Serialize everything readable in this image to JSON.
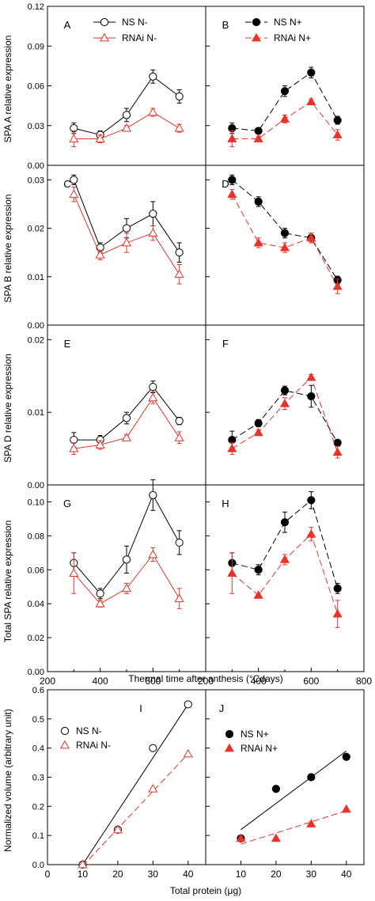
{
  "colors": {
    "ns": "#000000",
    "rnai": "#e8332a",
    "frame": "#000000"
  },
  "xaxis_label": "Thermal time after anthesis (°Cdays)",
  "xaxis_ticks": [
    "200",
    "400",
    "600",
    "800"
  ],
  "x_tick_values": [
    200,
    400,
    600,
    800
  ],
  "x_left_ticks": [
    "200",
    "400",
    "600",
    "800"
  ],
  "x_right_ticks": [
    "200",
    "400",
    "600",
    "800"
  ],
  "chart_data": [
    {
      "type": "line",
      "panel": "A",
      "column": "N-",
      "ylabel": "SPA A relative expression",
      "ylim": [
        0,
        0.12
      ],
      "yticks": [
        "0.00",
        "0.03",
        "0.06",
        "0.09",
        "0.12"
      ],
      "ytick_values": [
        0,
        0.03,
        0.06,
        0.09,
        0.12
      ],
      "x": [
        300,
        400,
        500,
        600,
        700
      ],
      "series": [
        {
          "name": "NS N-",
          "values": [
            0.028,
            0.023,
            0.038,
            0.067,
            0.052
          ],
          "err": [
            0.004,
            0.003,
            0.005,
            0.005,
            0.005
          ],
          "marker": "circle-open",
          "dashed": false,
          "color": "#000000"
        },
        {
          "name": "RNAi N-",
          "values": [
            0.02,
            0.02,
            0.028,
            0.04,
            0.028
          ],
          "err": [
            0.006,
            0.003,
            0.002,
            0.003,
            0.003
          ],
          "marker": "triangle-open",
          "dashed": false,
          "color": "#e8332a"
        }
      ],
      "legend": true
    },
    {
      "type": "line",
      "panel": "B",
      "column": "N+",
      "ylim": [
        0,
        0.12
      ],
      "x": [
        300,
        400,
        500,
        600,
        700
      ],
      "series": [
        {
          "name": "NS N+",
          "values": [
            0.028,
            0.026,
            0.056,
            0.07,
            0.034
          ],
          "err": [
            0.004,
            0.002,
            0.004,
            0.004,
            0.003
          ],
          "marker": "circle-filled",
          "dashed": true,
          "color": "#000000"
        },
        {
          "name": "RNAi N+",
          "values": [
            0.02,
            0.02,
            0.035,
            0.048,
            0.023
          ],
          "err": [
            0.006,
            0.002,
            0.003,
            0.002,
            0.004
          ],
          "marker": "triangle-filled",
          "dashed": true,
          "color": "#e8332a"
        }
      ],
      "legend": true
    },
    {
      "type": "line",
      "panel": "C",
      "column": "N-",
      "ylabel": "SPA B relative expression",
      "ylim": [
        0,
        0.033
      ],
      "yticks": [
        "0.00",
        "0.01",
        "0.02",
        "0.03"
      ],
      "ytick_values": [
        0,
        0.01,
        0.02,
        0.03
      ],
      "x": [
        300,
        400,
        500,
        600,
        700
      ],
      "series": [
        {
          "name": "NS N-",
          "values": [
            0.03,
            0.016,
            0.02,
            0.023,
            0.015
          ],
          "err": [
            0.001,
            0.001,
            0.002,
            0.0025,
            0.002
          ],
          "marker": "circle-open",
          "dashed": false,
          "color": "#000000"
        },
        {
          "name": "RNAi N-",
          "values": [
            0.027,
            0.0145,
            0.017,
            0.019,
            0.0105
          ],
          "err": [
            0.0015,
            0.001,
            0.002,
            0.0015,
            0.002
          ],
          "marker": "triangle-open",
          "dashed": false,
          "color": "#e8332a"
        }
      ]
    },
    {
      "type": "line",
      "panel": "D",
      "column": "N+",
      "ylim": [
        0,
        0.033
      ],
      "x": [
        300,
        400,
        500,
        600,
        700
      ],
      "series": [
        {
          "name": "NS N+",
          "values": [
            0.03,
            0.0255,
            0.019,
            0.018,
            0.0093
          ],
          "err": [
            0.001,
            0.001,
            0.001,
            0.001,
            0.0008
          ],
          "marker": "circle-filled",
          "dashed": true,
          "color": "#000000"
        },
        {
          "name": "RNAi N+",
          "values": [
            0.027,
            0.017,
            0.016,
            0.018,
            0.008
          ],
          "err": [
            0.001,
            0.001,
            0.001,
            0.001,
            0.0015
          ],
          "marker": "triangle-filled",
          "dashed": true,
          "color": "#e8332a"
        }
      ]
    },
    {
      "type": "line",
      "panel": "E",
      "column": "N-",
      "ylabel": "SPA D relative expression",
      "ylim": [
        0,
        0.022
      ],
      "yticks": [
        "0.00",
        "0.01",
        "0.02"
      ],
      "ytick_values": [
        0,
        0.01,
        0.02
      ],
      "x": [
        300,
        400,
        500,
        600,
        700
      ],
      "series": [
        {
          "name": "NS N-",
          "values": [
            0.0062,
            0.0062,
            0.0092,
            0.0135,
            0.0088
          ],
          "err": [
            0.001,
            0.0006,
            0.0008,
            0.0008,
            0.0005
          ],
          "marker": "circle-open",
          "dashed": false,
          "color": "#000000"
        },
        {
          "name": "RNAi N-",
          "values": [
            0.005,
            0.0055,
            0.0065,
            0.012,
            0.0065
          ],
          "err": [
            0.0008,
            0.0006,
            0.0004,
            0.0008,
            0.0008
          ],
          "marker": "triangle-open",
          "dashed": false,
          "color": "#e8332a"
        }
      ]
    },
    {
      "type": "line",
      "panel": "F",
      "column": "N+",
      "ylim": [
        0,
        0.022
      ],
      "x": [
        300,
        400,
        500,
        600,
        700
      ],
      "series": [
        {
          "name": "NS N+",
          "values": [
            0.0062,
            0.0085,
            0.013,
            0.0122,
            0.0058
          ],
          "err": [
            0.0012,
            0.0005,
            0.0006,
            0.0015,
            0.0004
          ],
          "marker": "circle-filled",
          "dashed": true,
          "color": "#000000"
        },
        {
          "name": "RNAi N+",
          "values": [
            0.005,
            0.0072,
            0.0112,
            0.0148,
            0.0045
          ],
          "err": [
            0.0008,
            0.0004,
            0.0008,
            0.0004,
            0.0008
          ],
          "marker": "triangle-filled",
          "dashed": true,
          "color": "#e8332a"
        }
      ]
    },
    {
      "type": "line",
      "panel": "G",
      "column": "N-",
      "ylabel": "Total SPA relative expression",
      "ylim": [
        0,
        0.11
      ],
      "yticks": [
        "0.00",
        "0.02",
        "0.04",
        "0.06",
        "0.08",
        "0.10"
      ],
      "ytick_values": [
        0,
        0.02,
        0.04,
        0.06,
        0.08,
        0.1
      ],
      "x": [
        300,
        400,
        500,
        600,
        700
      ],
      "series": [
        {
          "name": "NS N-",
          "values": [
            0.064,
            0.046,
            0.066,
            0.104,
            0.076
          ],
          "err": [
            0.006,
            0.003,
            0.008,
            0.009,
            0.007
          ],
          "marker": "circle-open",
          "dashed": false,
          "color": "#000000"
        },
        {
          "name": "RNAi N-",
          "values": [
            0.058,
            0.04,
            0.049,
            0.069,
            0.043
          ],
          "err": [
            0.012,
            0.002,
            0.003,
            0.004,
            0.006
          ],
          "marker": "triangle-open",
          "dashed": false,
          "color": "#e8332a"
        }
      ]
    },
    {
      "type": "line",
      "panel": "H",
      "column": "N+",
      "ylim": [
        0,
        0.11
      ],
      "x": [
        300,
        400,
        500,
        600,
        700
      ],
      "series": [
        {
          "name": "NS N+",
          "values": [
            0.064,
            0.06,
            0.088,
            0.101,
            0.049
          ],
          "err": [
            0.006,
            0.003,
            0.006,
            0.005,
            0.003
          ],
          "marker": "circle-filled",
          "dashed": true,
          "color": "#000000"
        },
        {
          "name": "RNAi N+",
          "values": [
            0.058,
            0.045,
            0.066,
            0.081,
            0.034
          ],
          "err": [
            0.012,
            0.001,
            0.003,
            0.004,
            0.008
          ],
          "marker": "triangle-filled",
          "dashed": true,
          "color": "#e8332a"
        }
      ]
    },
    {
      "type": "scatter",
      "panel": "I",
      "column": "N-",
      "ylabel": "Normalized volume (arbitrary unit)",
      "xlabel": "Total protein (μg)",
      "ylim": [
        0,
        0.6
      ],
      "yticks": [
        "0.0",
        "0.1",
        "0.2",
        "0.3",
        "0.4",
        "0.5",
        "0.6"
      ],
      "ytick_values": [
        0,
        0.1,
        0.2,
        0.3,
        0.4,
        0.5,
        0.6
      ],
      "xlim": [
        0,
        45
      ],
      "xticks": [
        "0",
        "10",
        "20",
        "30",
        "40"
      ],
      "xtick_values": [
        0,
        10,
        20,
        30,
        40
      ],
      "x": [
        10,
        20,
        30,
        40
      ],
      "series": [
        {
          "name": "NS N-",
          "values": [
            0.0,
            0.12,
            0.4,
            0.55
          ],
          "marker": "circle-open",
          "dashed": false,
          "color": "#000000",
          "fit": [
            10,
            0.0,
            40,
            0.55
          ]
        },
        {
          "name": "RNAi N-",
          "values": [
            0.0,
            0.12,
            0.26,
            0.38
          ],
          "marker": "triangle-open",
          "dashed": true,
          "color": "#e8332a",
          "fit": [
            10,
            -0.005,
            40,
            0.38
          ]
        }
      ],
      "legend": true
    },
    {
      "type": "scatter",
      "panel": "J",
      "column": "N+",
      "ylim": [
        0,
        0.6
      ],
      "xlim": [
        0,
        45
      ],
      "xticks": [
        "0",
        "10",
        "20",
        "30",
        "40"
      ],
      "xtick_values": [
        0,
        10,
        20,
        30,
        40
      ],
      "x": [
        10,
        20,
        30,
        40
      ],
      "series": [
        {
          "name": "NS N+",
          "values": [
            0.09,
            0.26,
            0.3,
            0.37
          ],
          "marker": "circle-filled",
          "dashed": false,
          "color": "#000000",
          "fit": [
            10,
            0.12,
            40,
            0.39
          ]
        },
        {
          "name": "RNAi N+",
          "values": [
            0.09,
            0.09,
            0.14,
            0.19
          ],
          "marker": "triangle-filled",
          "dashed": true,
          "color": "#e8332a",
          "fit": [
            10,
            0.07,
            40,
            0.185
          ]
        }
      ],
      "legend": true
    }
  ]
}
